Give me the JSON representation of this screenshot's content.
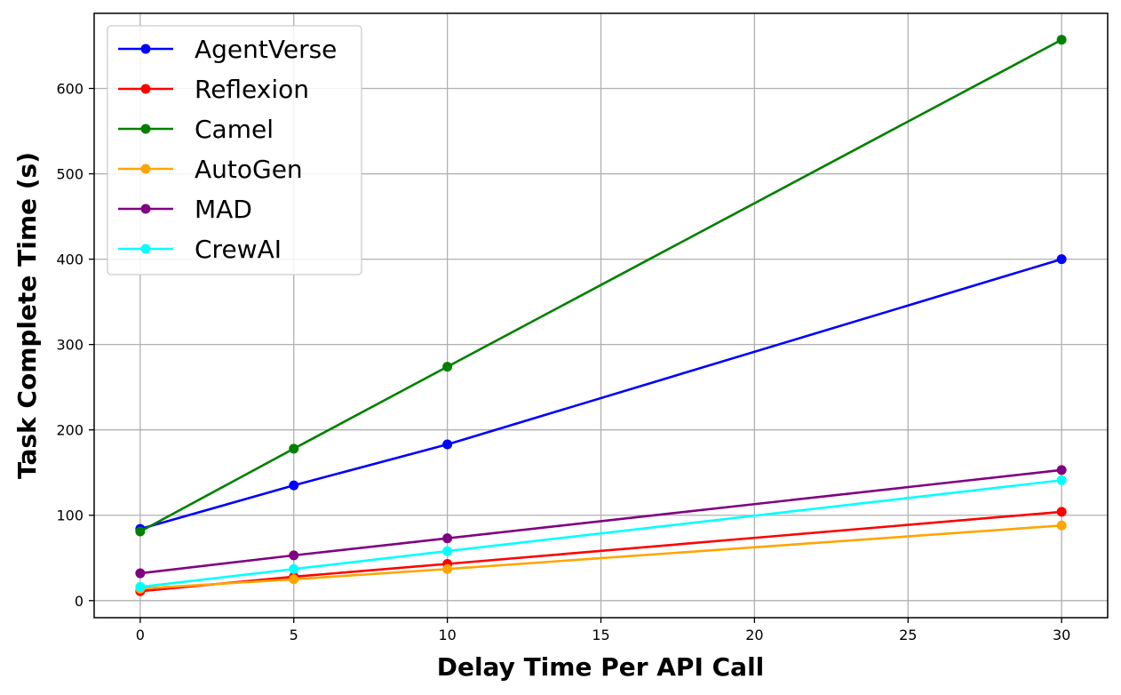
{
  "chart_data": {
    "type": "line",
    "xlabel": "Delay Time Per API Call",
    "ylabel": "Task Complete Time (s)",
    "x": [
      0,
      5,
      10,
      30
    ],
    "xlim": [
      -1.5,
      31.5
    ],
    "ylim": [
      -20,
      688
    ],
    "xticks": [
      0,
      5,
      10,
      15,
      20,
      25,
      30
    ],
    "yticks": [
      0,
      100,
      200,
      300,
      400,
      500,
      600
    ],
    "grid": true,
    "legend_position": "top-left",
    "series": [
      {
        "name": "AgentVerse",
        "color": "#0000ff",
        "values": [
          84,
          135,
          183,
          400
        ]
      },
      {
        "name": "Reflexion",
        "color": "#ff0000",
        "values": [
          11,
          28,
          43,
          104
        ]
      },
      {
        "name": "Camel",
        "color": "#008000",
        "values": [
          81,
          178,
          274,
          657
        ]
      },
      {
        "name": "AutoGen",
        "color": "#ffa500",
        "values": [
          14,
          25,
          37,
          88
        ]
      },
      {
        "name": "MAD",
        "color": "#800080",
        "values": [
          32,
          53,
          73,
          153
        ]
      },
      {
        "name": "CrewAI",
        "color": "#00ffff",
        "values": [
          16,
          37,
          58,
          141
        ]
      }
    ]
  }
}
